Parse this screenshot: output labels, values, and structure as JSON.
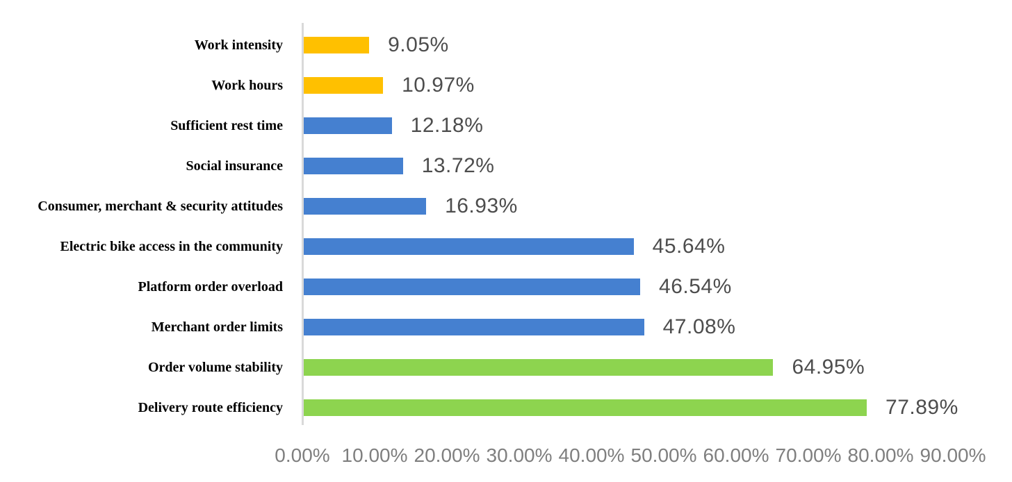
{
  "chart_data": {
    "type": "bar",
    "orientation": "horizontal",
    "title": "",
    "xlabel": "",
    "ylabel": "",
    "categories": [
      "Work intensity",
      "Work hours",
      "Sufficient rest time",
      "Social insurance",
      "Consumer, merchant & security attitudes",
      "Electric bike access in the community",
      "Platform order overload",
      "Merchant order limits",
      "Order volume stability",
      "Delivery route efficiency"
    ],
    "values": [
      9.05,
      10.97,
      12.18,
      13.72,
      16.93,
      45.64,
      46.54,
      47.08,
      64.95,
      77.89
    ],
    "value_labels": [
      "9.05%",
      "10.97%",
      "12.18%",
      "13.72%",
      "16.93%",
      "45.64%",
      "46.54%",
      "47.08%",
      "64.95%",
      "77.89%"
    ],
    "bar_colors": [
      "#FFC000",
      "#FFC000",
      "#4580D0",
      "#4580D0",
      "#4580D0",
      "#4580D0",
      "#4580D0",
      "#4580D0",
      "#8DD44F",
      "#8DD44F"
    ],
    "palette": {
      "yellow": "#FFC000",
      "blue": "#4580D0",
      "green": "#8DD44F",
      "axis_line": "#d9d9d9",
      "value_text": "#4d4d4d",
      "tick_text": "#7f7f7f"
    },
    "x_ticks": [
      "0.00%",
      "10.00%",
      "20.00%",
      "30.00%",
      "40.00%",
      "50.00%",
      "60.00%",
      "70.00%",
      "80.00%",
      "90.00%"
    ],
    "x_tick_values": [
      0,
      10,
      20,
      30,
      40,
      50,
      60,
      70,
      80,
      90
    ],
    "xlim": [
      0,
      90
    ],
    "grid": false,
    "legend": "none"
  }
}
